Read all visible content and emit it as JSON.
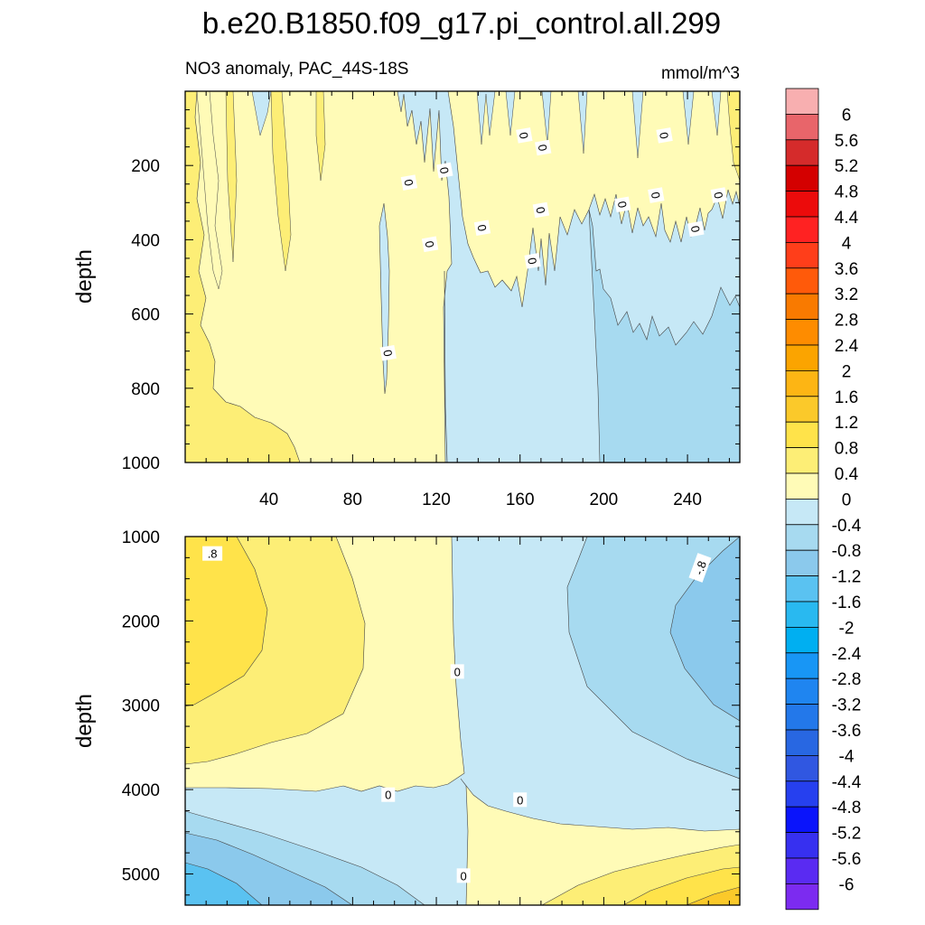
{
  "chart_data": {
    "type": "contour",
    "title": "b.e20.B1850.f09_g17.pi_control.all.299",
    "subtitle_left": "NO3 anomaly, PAC_44S-18S",
    "subtitle_right": "mmol/m^3",
    "colorbar": {
      "labels": [
        "6",
        "5.6",
        "5.2",
        "4.8",
        "4.4",
        "4",
        "3.6",
        "3.2",
        "2.8",
        "2.4",
        "2",
        "1.6",
        "1.2",
        "0.8",
        "0.4",
        "0",
        "-0.4",
        "-0.8",
        "-1.2",
        "-1.6",
        "-2",
        "-2.4",
        "-2.8",
        "-3.2",
        "-3.6",
        "-4",
        "-4.4",
        "-4.8",
        "-5.2",
        "-5.6",
        "-6"
      ],
      "colors": [
        "#F8AFB0",
        "#E8656A",
        "#D52B2B",
        "#D40000",
        "#EC0B0B",
        "#FF2222",
        "#FF3E1A",
        "#FF5A0A",
        "#F97A00",
        "#FE8C00",
        "#FBA400",
        "#FDB514",
        "#FBC92A",
        "#FFE34A",
        "#FDEE76",
        "#FFFBB7",
        "#C6E8F6",
        "#A7DAF0",
        "#8BC9EC",
        "#5AC2F1",
        "#29B9F0",
        "#00AFF1",
        "#1896F5",
        "#1F85F0",
        "#2378EA",
        "#2867E2",
        "#3057E1",
        "#2640EF",
        "#0A14FB",
        "#3730F0",
        "#5A2BF2",
        "#7C2BF0"
      ]
    },
    "panels": [
      {
        "name": "upper",
        "xlabel": "",
        "ylabel": "depth",
        "xlim": [
          0,
          265
        ],
        "ylim": [
          1000,
          0
        ],
        "xticks": [
          40,
          80,
          120,
          160,
          200,
          240
        ],
        "yticks": [
          200,
          400,
          600,
          800,
          1000
        ],
        "contour_labels": [
          {
            "text": "0",
            "x": 107,
            "y": 246
          },
          {
            "text": "0",
            "x": 124,
            "y": 213
          },
          {
            "text": "0",
            "x": 117,
            "y": 412
          },
          {
            "text": "0",
            "x": 142,
            "y": 368
          },
          {
            "text": "0",
            "x": 162,
            "y": 119
          },
          {
            "text": "0",
            "x": 171,
            "y": 152
          },
          {
            "text": "0",
            "x": 170,
            "y": 320
          },
          {
            "text": "0",
            "x": 166,
            "y": 457
          },
          {
            "text": "0",
            "x": 209,
            "y": 305
          },
          {
            "text": "0",
            "x": 225,
            "y": 280
          },
          {
            "text": "0",
            "x": 229,
            "y": 119
          },
          {
            "text": "0",
            "x": 244,
            "y": 371
          },
          {
            "text": "0",
            "x": 255,
            "y": 280
          },
          {
            "text": "0",
            "x": 97,
            "y": 705
          }
        ]
      },
      {
        "name": "lower",
        "xlabel": "",
        "ylabel": "depth",
        "xlim": [
          0,
          265
        ],
        "ylim": [
          5370,
          1000
        ],
        "yticks": [
          1000,
          2000,
          3000,
          4000,
          5000
        ],
        "contour_labels": [
          {
            "text": ".8",
            "x": 13,
            "y": 1200
          },
          {
            "text": "-.8",
            "x": 246,
            "y": 1370
          },
          {
            "text": "0",
            "x": 130,
            "y": 2600
          },
          {
            "text": "0",
            "x": 97,
            "y": 4060
          },
          {
            "text": "0",
            "x": 160,
            "y": 4120
          },
          {
            "text": "0",
            "x": 133,
            "y": 5020
          }
        ]
      }
    ]
  }
}
